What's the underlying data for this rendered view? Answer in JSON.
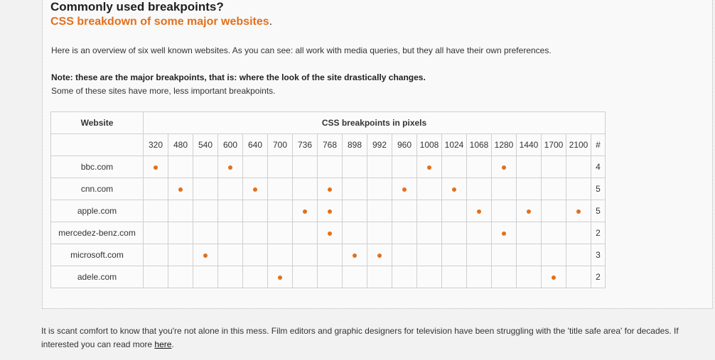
{
  "heading": {
    "title": "Commonly used breakpoints?",
    "subtitle": "CSS breakdown of some major websites",
    "subtitle_punct": "."
  },
  "intro": "Here is an overview of six well known websites. As you can see: all work with media queries, but they all have their own preferences.",
  "note_bold": "Note: these are the major breakpoints, that is: where the look of the site drastically changes.",
  "note_plain": "Some of these sites have more, less important breakpoints.",
  "table": {
    "website_header": "Website",
    "breakpoints_header": "CSS breakpoints in pixels",
    "count_header": "#",
    "breakpoints": [
      "320",
      "480",
      "540",
      "600",
      "640",
      "700",
      "736",
      "768",
      "898",
      "992",
      "960",
      "1008",
      "1024",
      "1068",
      "1280",
      "1440",
      "1700",
      "2100"
    ],
    "rows": [
      {
        "site": "bbc.com",
        "marks": [
          "320",
          "600",
          "1008",
          "1280"
        ],
        "count": "4"
      },
      {
        "site": "cnn.com",
        "marks": [
          "480",
          "640",
          "768",
          "960",
          "1024"
        ],
        "count": "5"
      },
      {
        "site": "apple.com",
        "marks": [
          "736",
          "768",
          "1068",
          "1440",
          "2100"
        ],
        "count": "5"
      },
      {
        "site": "mercedez-benz.com",
        "marks": [
          "768",
          "1280"
        ],
        "count": "2"
      },
      {
        "site": "microsoft.com",
        "marks": [
          "540",
          "898",
          "992"
        ],
        "count": "3"
      },
      {
        "site": "adele.com",
        "marks": [
          "700",
          "1700"
        ],
        "count": "2"
      }
    ]
  },
  "footer": {
    "text_1": "It is scant comfort to know that you're not alone in this mess. Film editors and graphic designers for television have been struggling with the 'title safe area' for decades. If interested you can read more ",
    "link_label": "here",
    "text_2": "."
  },
  "colors": {
    "accent": "#e2701c"
  }
}
